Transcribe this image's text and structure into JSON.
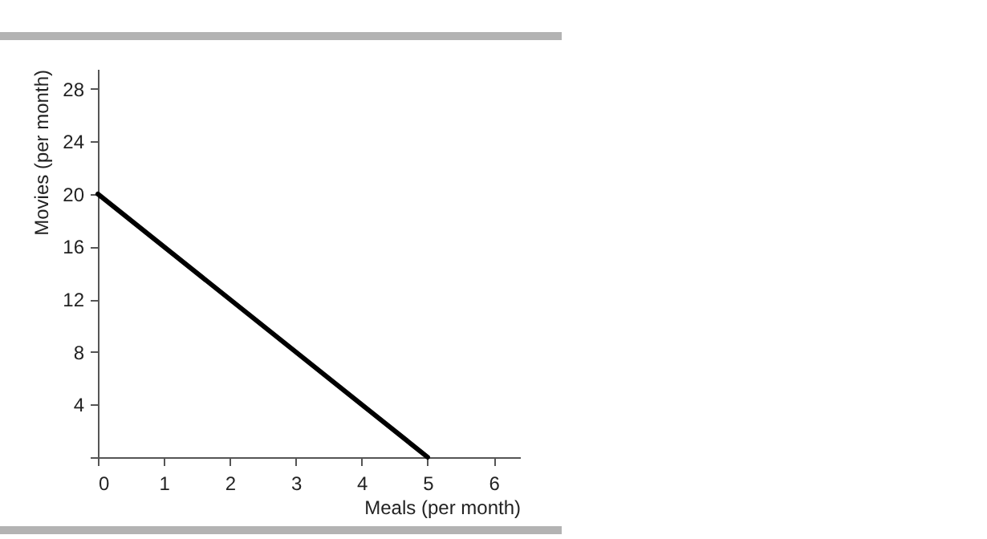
{
  "chart_data": {
    "type": "line",
    "xlabel": "Meals (per month)",
    "ylabel": "Movies (per month)",
    "x": [
      0,
      5
    ],
    "series": [
      {
        "color": "#000000",
        "values": [
          20,
          0
        ]
      }
    ],
    "xlim": [
      0,
      6.4
    ],
    "xticks": [
      0,
      1,
      2,
      3,
      4,
      5,
      6
    ],
    "ylim": [
      0,
      29.5
    ],
    "yticks": [
      {
        "value": 0,
        "label": null
      },
      4,
      8,
      12,
      16,
      20,
      24,
      28
    ],
    "grid": false,
    "marker": "none",
    "line_style": "solid"
  }
}
